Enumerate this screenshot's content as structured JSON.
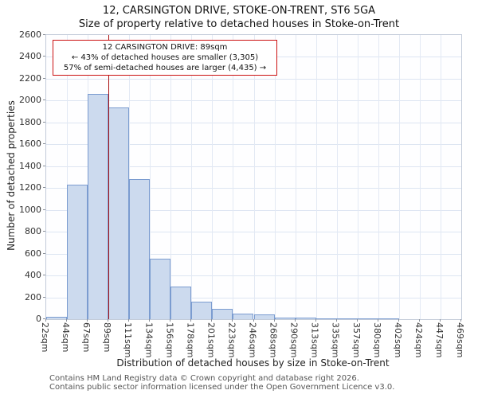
{
  "title": {
    "line1": "12, CARSINGTON DRIVE, STOKE-ON-TRENT, ST6 5GA",
    "line2": "Size of property relative to detached houses in Stoke-on-Trent"
  },
  "annotation": {
    "line1": "12 CARSINGTON DRIVE: 89sqm",
    "line2": "← 43% of detached houses are smaller (3,305)",
    "line3": "57% of semi-detached houses are larger (4,435) →"
  },
  "footer": {
    "line1": "Contains HM Land Registry data © Crown copyright and database right 2026.",
    "line2": "Contains public sector information licensed under the Open Government Licence v3.0."
  },
  "chart_data": {
    "type": "bar",
    "title": "12, CARSINGTON DRIVE, STOKE-ON-TRENT, ST6 5GA — Size of property relative to detached houses in Stoke-on-Trent",
    "xlabel": "Distribution of detached houses by size in Stoke-on-Trent",
    "ylabel": "Number of detached properties",
    "x_tick_labels": [
      "22sqm",
      "44sqm",
      "67sqm",
      "89sqm",
      "111sqm",
      "134sqm",
      "156sqm",
      "178sqm",
      "201sqm",
      "223sqm",
      "246sqm",
      "268sqm",
      "290sqm",
      "313sqm",
      "335sqm",
      "357sqm",
      "380sqm",
      "402sqm",
      "424sqm",
      "447sqm",
      "469sqm"
    ],
    "bin_starts_sqm": [
      22,
      44,
      67,
      89,
      111,
      134,
      156,
      178,
      201,
      223,
      246,
      268,
      290,
      313,
      335,
      357,
      380,
      402,
      424,
      447
    ],
    "values": [
      20,
      1230,
      2060,
      1940,
      1285,
      555,
      295,
      160,
      95,
      50,
      45,
      15,
      12,
      8,
      6,
      4,
      3,
      0,
      0,
      0
    ],
    "y_ticks": [
      0,
      200,
      400,
      600,
      800,
      1000,
      1200,
      1400,
      1600,
      1800,
      2000,
      2200,
      2400,
      2600
    ],
    "ylim": [
      0,
      2600
    ],
    "grid": true,
    "legend": null,
    "bar_fill": "#ccdaee",
    "bar_border": "#7b9cd0",
    "marker": {
      "x_value": "89sqm",
      "x_tick_index": 3,
      "color": "#aa1111",
      "label": "12 CARSINGTON DRIVE: 89sqm"
    }
  }
}
